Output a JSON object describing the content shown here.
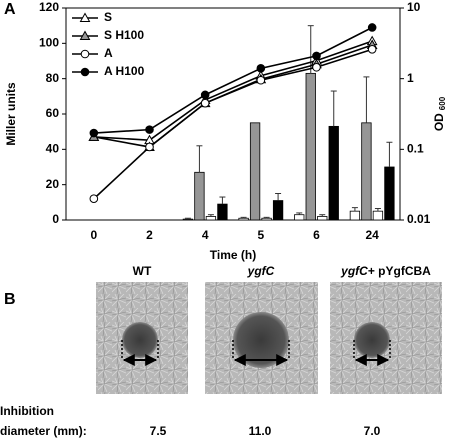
{
  "chart_data": {
    "type": "combo",
    "panel": "A",
    "xlabel": "Time (h)",
    "ylabel": "Miller units",
    "y2label": "OD",
    "y2label_sub": "600",
    "categories": [
      "0",
      "2",
      "4",
      "5",
      "6",
      "24"
    ],
    "ylim": [
      0,
      120
    ],
    "yticks": [
      0,
      20,
      40,
      60,
      80,
      100,
      120
    ],
    "y2lim": [
      0.01,
      10
    ],
    "y2ticks": [
      0.01,
      0.1,
      1,
      10
    ],
    "y2scale": "log",
    "legend": "top-left",
    "series": [
      {
        "type": "bar",
        "color": "#ffffff",
        "values": [
          0,
          0,
          0.5,
          1,
          3,
          5
        ],
        "errors": [
          0,
          0,
          0.5,
          0.5,
          1,
          2
        ]
      },
      {
        "type": "bar",
        "color": "#969696",
        "values": [
          0,
          0,
          27,
          55,
          83,
          55
        ],
        "errors": [
          0,
          0,
          15,
          0,
          27,
          26
        ]
      },
      {
        "type": "bar",
        "color": "#ffffff",
        "values": [
          0,
          0,
          2,
          1,
          2,
          5
        ],
        "errors": [
          0,
          0,
          1,
          0.5,
          1,
          1.5
        ]
      },
      {
        "type": "bar",
        "color": "#000000",
        "values": [
          0,
          0,
          9,
          11,
          53,
          30
        ],
        "errors": [
          0,
          0,
          4,
          4,
          20,
          14
        ]
      },
      {
        "type": "line",
        "axis": "y2",
        "name": "S",
        "marker": "triangle",
        "color": "#ffffff",
        "values": [
          0.15,
          0.135,
          0.5,
          1.1,
          1.8,
          3.4
        ]
      },
      {
        "type": "line",
        "axis": "y2",
        "name": "S H100",
        "marker": "triangle",
        "color": "#969696",
        "values": [
          0.15,
          0.108,
          0.45,
          0.98,
          1.6,
          3.0
        ]
      },
      {
        "type": "line",
        "axis": "y2",
        "name": "A",
        "marker": "circle",
        "color": "#ffffff",
        "values": [
          0.02,
          0.108,
          0.45,
          0.95,
          1.45,
          2.6
        ]
      },
      {
        "type": "line",
        "axis": "y2",
        "name": "A H100",
        "marker": "circle",
        "color": "#000000",
        "values": [
          0.17,
          0.19,
          0.59,
          1.4,
          2.1,
          5.3
        ]
      }
    ]
  },
  "panel_b": {
    "panel": "B",
    "strains": [
      {
        "label": "WT",
        "diameter": "7.5"
      },
      {
        "label": "ygfC",
        "italic": true,
        "diameter": "11.0"
      },
      {
        "label": "ygfC",
        "italic": true,
        "suffix": "+ pYgfCBA",
        "diameter": "7.0"
      }
    ],
    "row_label_1": "Inhibition",
    "row_label_2": "diameter (mm):"
  }
}
